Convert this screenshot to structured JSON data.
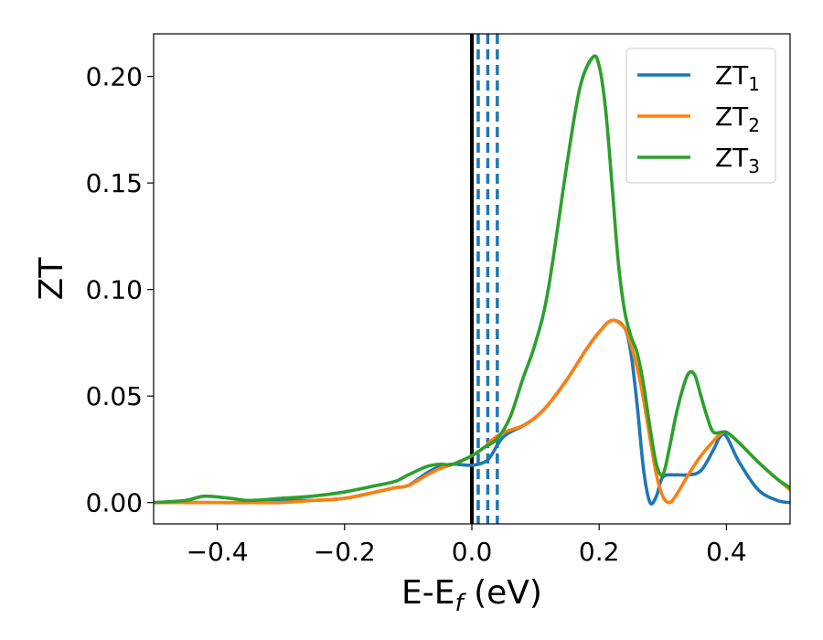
{
  "chart_data": {
    "type": "line",
    "title": "",
    "xlabel": {
      "main": "E-E",
      "sub": "f",
      "suffix": " (eV)"
    },
    "ylabel": "ZT",
    "xlim": [
      -0.5,
      0.5
    ],
    "ylim": [
      -0.01,
      0.22
    ],
    "xticks": [
      -0.4,
      -0.2,
      0.0,
      0.2,
      0.4
    ],
    "xtick_labels": [
      "−0.4",
      "−0.2",
      "0.0",
      "0.2",
      "0.4"
    ],
    "yticks": [
      0.0,
      0.05,
      0.1,
      0.15,
      0.2
    ],
    "ytick_labels": [
      "0.00",
      "0.05",
      "0.10",
      "0.15",
      "0.20"
    ],
    "grid": false,
    "legend_position": "top-right",
    "vlines": [
      {
        "x": 0.0,
        "style": "solid",
        "color": "#000000"
      },
      {
        "x": 0.01,
        "style": "dashed",
        "color": "#1f77b4"
      },
      {
        "x": 0.025,
        "style": "dashed",
        "color": "#1f77b4"
      },
      {
        "x": 0.04,
        "style": "dashed",
        "color": "#1f77b4"
      }
    ],
    "series": [
      {
        "name": "ZT",
        "name_sub": "1",
        "color": "#1f77b4",
        "x": [
          -0.5,
          -0.45,
          -0.42,
          -0.4,
          -0.35,
          -0.3,
          -0.25,
          -0.2,
          -0.15,
          -0.12,
          -0.1,
          -0.07,
          -0.05,
          -0.03,
          0.0,
          0.02,
          0.03,
          0.05,
          0.08,
          0.1,
          0.12,
          0.15,
          0.18,
          0.2,
          0.22,
          0.24,
          0.25,
          0.26,
          0.27,
          0.28,
          0.29,
          0.3,
          0.32,
          0.34,
          0.36,
          0.38,
          0.39,
          0.4,
          0.42,
          0.45,
          0.48,
          0.5
        ],
        "y": [
          0.0,
          0.0,
          0.0,
          0.0,
          0.0,
          0.001,
          0.001,
          0.002,
          0.005,
          0.007,
          0.008,
          0.014,
          0.017,
          0.018,
          0.0175,
          0.019,
          0.022,
          0.031,
          0.036,
          0.04,
          0.046,
          0.058,
          0.072,
          0.08,
          0.0855,
          0.082,
          0.07,
          0.045,
          0.015,
          0.0,
          0.003,
          0.012,
          0.013,
          0.013,
          0.015,
          0.025,
          0.031,
          0.031,
          0.019,
          0.006,
          0.001,
          0.0
        ]
      },
      {
        "name": "ZT",
        "name_sub": "2",
        "color": "#ff7f0e",
        "x": [
          -0.5,
          -0.45,
          -0.4,
          -0.35,
          -0.3,
          -0.25,
          -0.2,
          -0.15,
          -0.12,
          -0.1,
          -0.07,
          -0.05,
          -0.03,
          0.0,
          0.02,
          0.03,
          0.05,
          0.08,
          0.1,
          0.12,
          0.15,
          0.18,
          0.2,
          0.22,
          0.24,
          0.25,
          0.26,
          0.27,
          0.28,
          0.29,
          0.3,
          0.31,
          0.32,
          0.34,
          0.36,
          0.38,
          0.39,
          0.4,
          0.42,
          0.45,
          0.48,
          0.5
        ],
        "y": [
          0.0,
          0.0,
          0.0,
          0.0,
          0.0,
          0.001,
          0.002,
          0.005,
          0.007,
          0.008,
          0.013,
          0.016,
          0.018,
          0.022,
          0.026,
          0.029,
          0.033,
          0.036,
          0.04,
          0.046,
          0.058,
          0.072,
          0.08,
          0.0855,
          0.082,
          0.074,
          0.063,
          0.048,
          0.03,
          0.013,
          0.003,
          0.0,
          0.003,
          0.013,
          0.022,
          0.029,
          0.032,
          0.033,
          0.028,
          0.019,
          0.011,
          0.006
        ]
      },
      {
        "name": "ZT",
        "name_sub": "3",
        "color": "#2ca02c",
        "x": [
          -0.5,
          -0.45,
          -0.42,
          -0.38,
          -0.35,
          -0.3,
          -0.25,
          -0.2,
          -0.15,
          -0.12,
          -0.1,
          -0.07,
          -0.05,
          -0.03,
          0.0,
          0.02,
          0.04,
          0.06,
          0.08,
          0.1,
          0.12,
          0.15,
          0.17,
          0.19,
          0.2,
          0.21,
          0.22,
          0.23,
          0.24,
          0.25,
          0.26,
          0.27,
          0.28,
          0.29,
          0.3,
          0.31,
          0.32,
          0.33,
          0.34,
          0.35,
          0.36,
          0.37,
          0.38,
          0.4,
          0.42,
          0.45,
          0.48,
          0.5
        ],
        "y": [
          0.0,
          0.001,
          0.003,
          0.002,
          0.001,
          0.002,
          0.003,
          0.005,
          0.008,
          0.01,
          0.013,
          0.017,
          0.018,
          0.018,
          0.022,
          0.026,
          0.03,
          0.04,
          0.058,
          0.075,
          0.1,
          0.16,
          0.195,
          0.209,
          0.205,
          0.185,
          0.15,
          0.113,
          0.09,
          0.078,
          0.07,
          0.055,
          0.035,
          0.018,
          0.013,
          0.025,
          0.04,
          0.052,
          0.0605,
          0.06,
          0.05,
          0.04,
          0.033,
          0.033,
          0.028,
          0.019,
          0.011,
          0.007
        ]
      }
    ]
  }
}
